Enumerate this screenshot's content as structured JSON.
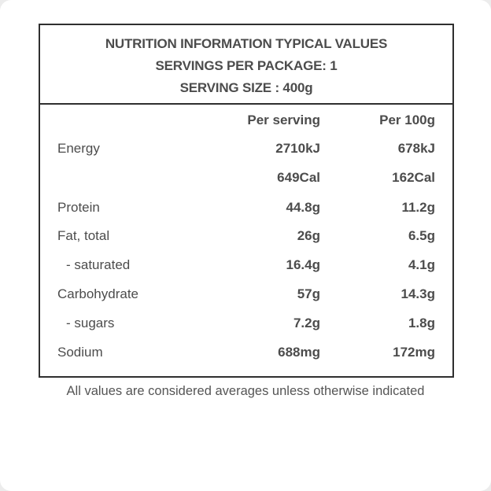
{
  "header": {
    "line1": "NUTRITION INFORMATION TYPICAL VALUES",
    "line2": "SERVINGS PER PACKAGE: 1",
    "line3": "SERVING SIZE : 400g"
  },
  "columns": {
    "per_serving": "Per serving",
    "per_100g": "Per 100g"
  },
  "rows": [
    {
      "label": "Energy",
      "per_serving": "2710kJ",
      "per_100g": "678kJ"
    },
    {
      "label": "",
      "per_serving": "649Cal",
      "per_100g": "162Cal"
    },
    {
      "label": "Protein",
      "per_serving": "44.8g",
      "per_100g": "11.2g"
    },
    {
      "label": "Fat, total",
      "per_serving": "26g",
      "per_100g": "6.5g"
    },
    {
      "label": "- saturated",
      "per_serving": "16.4g",
      "per_100g": "4.1g"
    },
    {
      "label": "Carbohydrate",
      "per_serving": "57g",
      "per_100g": "14.3g"
    },
    {
      "label": "- sugars",
      "per_serving": "7.2g",
      "per_100g": "1.8g"
    },
    {
      "label": "Sodium",
      "per_serving": "688mg",
      "per_100g": "172mg"
    }
  ],
  "footer": {
    "note": "All values are considered averages unless otherwise indicated"
  }
}
